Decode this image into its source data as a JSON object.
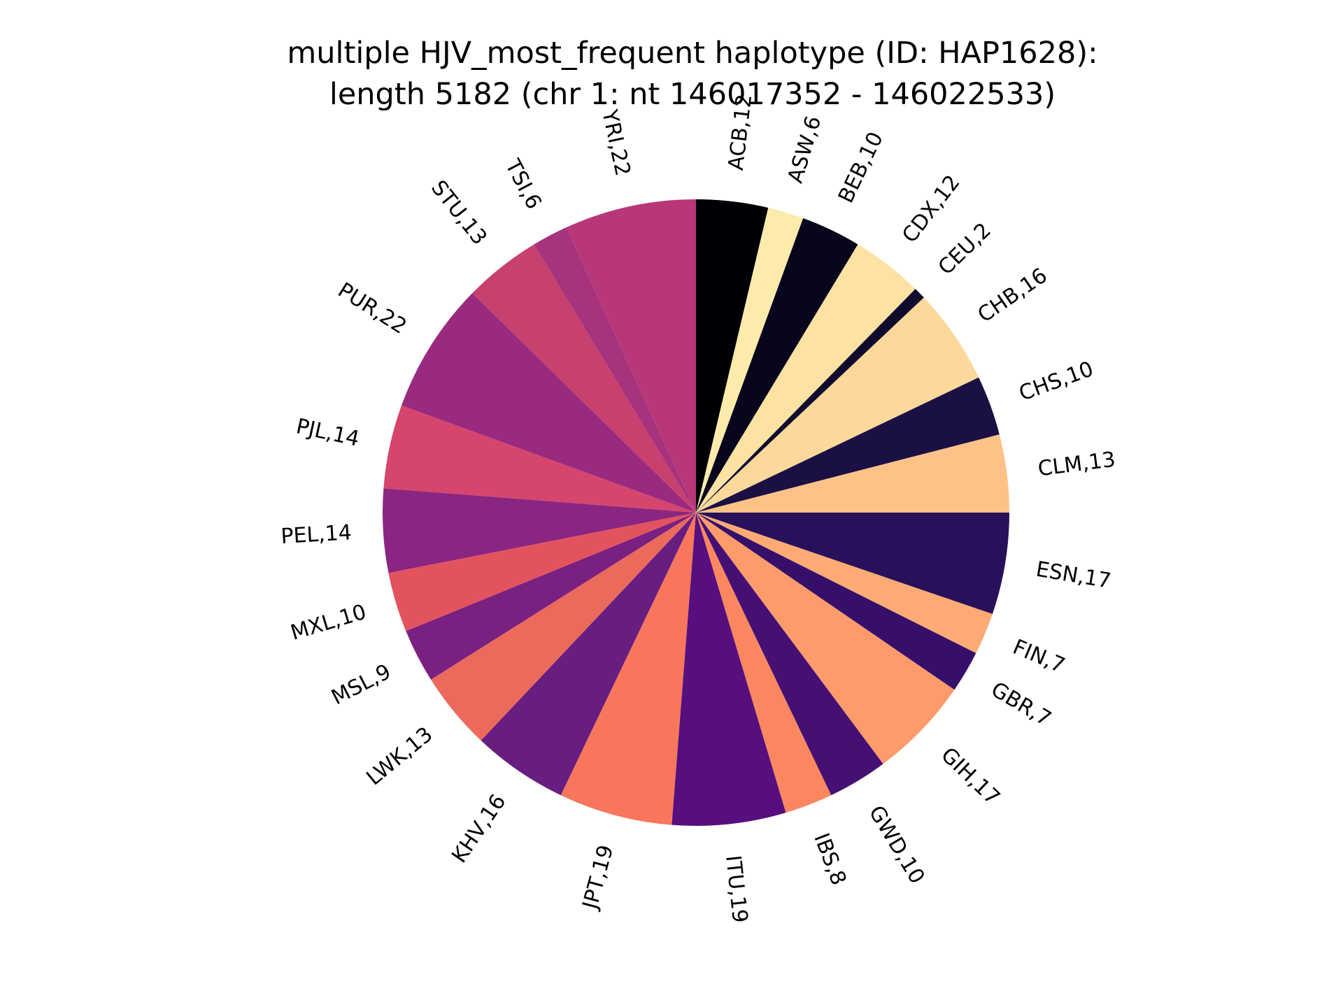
{
  "chart_data": {
    "type": "pie",
    "title_lines": [
      "multiple HJV_most_frequent haplotype (ID: HAP1628):",
      "length 5182 (chr 1: nt 146017352 - 146022533)"
    ],
    "categories": [
      "ACB",
      "ASW",
      "BEB",
      "CDX",
      "CEU",
      "CHB",
      "CHS",
      "CLM",
      "ESN",
      "FIN",
      "GBR",
      "GIH",
      "GWD",
      "IBS",
      "ITU",
      "JPT",
      "KHV",
      "LWK",
      "MSL",
      "MXL",
      "PEL",
      "PJL",
      "PUR",
      "STU",
      "TSI",
      "YRI"
    ],
    "values": [
      12,
      6,
      10,
      12,
      2,
      16,
      10,
      13,
      17,
      7,
      7,
      17,
      10,
      8,
      19,
      19,
      16,
      13,
      9,
      10,
      14,
      14,
      22,
      13,
      6,
      22
    ],
    "labels": [
      "ACB,12",
      "ASW,6",
      "BEB,10",
      "CDX,12",
      "CEU,2",
      "CHB,16",
      "CHS,10",
      "CLM,13",
      "ESN,17",
      "FIN,7",
      "GBR,7",
      "GIH,17",
      "GWD,10",
      "IBS,8",
      "ITU,19",
      "JPT,19",
      "KHV,16",
      "LWK,13",
      "MSL,9",
      "MXL,10",
      "PEL,14",
      "PJL,14",
      "PUR,22",
      "STU,13",
      "TSI,6",
      "YRI,22"
    ],
    "colors": [
      "#000004",
      "#fcebaa",
      "#07061c",
      "#fde2a3",
      "#100b2d",
      "#fdd89b",
      "#1b1044",
      "#fec287",
      "#28115a",
      "#feaa74",
      "#360f6b",
      "#fd9b6b",
      "#450f74",
      "#fa8760",
      "#570f7d",
      "#f7765c",
      "#681e80",
      "#ec6a5b",
      "#7a2081",
      "#e3535d",
      "#8a2581",
      "#d6456c",
      "#992a7f",
      "#c7406e",
      "#a7327d",
      "#b73779"
    ],
    "start_angle_deg": 90,
    "direction": "clockwise",
    "legend": "none"
  }
}
